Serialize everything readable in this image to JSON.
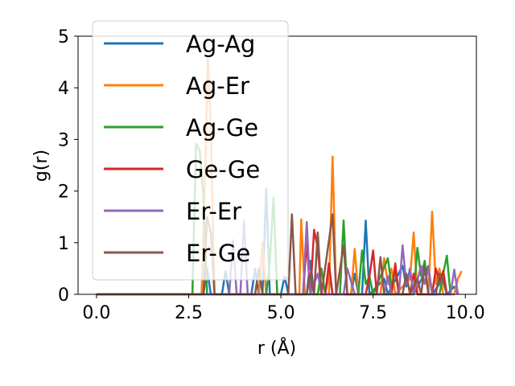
{
  "chart_data": {
    "type": "line",
    "title": "",
    "xlabel": "r (Å)",
    "ylabel": "g(r)",
    "xlim": [
      -0.5,
      10.3
    ],
    "ylim": [
      0,
      5
    ],
    "xticks": [
      0.0,
      2.5,
      5.0,
      7.5,
      10.0
    ],
    "xtick_labels": [
      "0.0",
      "2.5",
      "5.0",
      "7.5",
      "10.0"
    ],
    "yticks": [
      0,
      1,
      2,
      3,
      4,
      5
    ],
    "ytick_labels": [
      "0",
      "1",
      "2",
      "3",
      "4",
      "5"
    ],
    "grid": false,
    "legend_position": "upper-left",
    "series": [
      {
        "name": "Ag-Ag",
        "color": "#1f77b4",
        "points": [
          [
            0,
            0
          ],
          [
            2.9,
            0
          ],
          [
            3.0,
            0.5
          ],
          [
            3.1,
            0
          ],
          [
            3.4,
            0
          ],
          [
            3.5,
            0.45
          ],
          [
            3.6,
            0
          ],
          [
            4.2,
            0
          ],
          [
            4.3,
            0.5
          ],
          [
            4.4,
            0
          ],
          [
            4.5,
            0
          ],
          [
            4.6,
            2.05
          ],
          [
            4.7,
            0
          ],
          [
            5.0,
            0
          ],
          [
            5.1,
            0.35
          ],
          [
            5.2,
            0
          ],
          [
            5.7,
            0
          ],
          [
            5.8,
            0.65
          ],
          [
            5.9,
            0
          ],
          [
            6.2,
            0
          ],
          [
            6.3,
            0.45
          ],
          [
            6.4,
            0
          ],
          [
            6.9,
            0
          ],
          [
            7.0,
            0.4
          ],
          [
            7.1,
            0
          ],
          [
            7.2,
            0
          ],
          [
            7.3,
            1.43
          ],
          [
            7.4,
            0
          ],
          [
            7.8,
            0.3
          ],
          [
            7.9,
            0
          ],
          [
            8.3,
            0.55
          ],
          [
            8.4,
            0.15
          ],
          [
            8.5,
            0.5
          ],
          [
            8.6,
            0
          ],
          [
            9.0,
            0.55
          ],
          [
            9.1,
            0
          ],
          [
            9.3,
            0.2
          ],
          [
            9.4,
            0.4
          ],
          [
            9.5,
            0
          ],
          [
            9.7,
            0.15
          ],
          [
            9.8,
            0
          ]
        ]
      },
      {
        "name": "Ag-Er",
        "color": "#ff7f0e",
        "points": [
          [
            0,
            0
          ],
          [
            2.85,
            0
          ],
          [
            2.95,
            2.4
          ],
          [
            3.02,
            4.6
          ],
          [
            3.1,
            3.2
          ],
          [
            3.2,
            0
          ],
          [
            4.4,
            0
          ],
          [
            4.5,
            1.0
          ],
          [
            4.6,
            0
          ],
          [
            5.5,
            0
          ],
          [
            5.55,
            1.45
          ],
          [
            5.65,
            0
          ],
          [
            6.3,
            0
          ],
          [
            6.4,
            2.67
          ],
          [
            6.5,
            0
          ],
          [
            6.9,
            0
          ],
          [
            7.0,
            0.88
          ],
          [
            7.1,
            0
          ],
          [
            7.7,
            0
          ],
          [
            7.8,
            0.7
          ],
          [
            7.9,
            0.2
          ],
          [
            8.0,
            0.5
          ],
          [
            8.1,
            0
          ],
          [
            8.5,
            0.3
          ],
          [
            8.6,
            1.2
          ],
          [
            8.7,
            0
          ],
          [
            9.0,
            0
          ],
          [
            9.1,
            1.6
          ],
          [
            9.2,
            0.2
          ],
          [
            9.3,
            0.5
          ],
          [
            9.4,
            0
          ],
          [
            9.7,
            0
          ],
          [
            9.8,
            0.3
          ],
          [
            9.9,
            0.45
          ]
        ]
      },
      {
        "name": "Ag-Ge",
        "color": "#2ca02c",
        "points": [
          [
            0,
            0
          ],
          [
            2.6,
            0
          ],
          [
            2.7,
            2.92
          ],
          [
            2.8,
            2.78
          ],
          [
            2.9,
            1.9
          ],
          [
            3.0,
            0
          ],
          [
            4.6,
            0
          ],
          [
            4.7,
            0.6
          ],
          [
            4.8,
            1.88
          ],
          [
            4.9,
            0
          ],
          [
            6.0,
            0
          ],
          [
            6.1,
            0.5
          ],
          [
            6.2,
            0
          ],
          [
            6.6,
            0
          ],
          [
            6.7,
            1.43
          ],
          [
            6.8,
            0
          ],
          [
            7.1,
            0
          ],
          [
            7.2,
            0.85
          ],
          [
            7.3,
            0.2
          ],
          [
            7.4,
            0.35
          ],
          [
            7.5,
            0
          ],
          [
            7.9,
            0.7
          ],
          [
            8.0,
            0.15
          ],
          [
            8.1,
            0.45
          ],
          [
            8.2,
            0
          ],
          [
            8.6,
            0
          ],
          [
            8.7,
            0.9
          ],
          [
            8.8,
            0.35
          ],
          [
            8.9,
            0.65
          ],
          [
            9.0,
            0
          ],
          [
            9.3,
            0
          ],
          [
            9.4,
            0.4
          ],
          [
            9.5,
            0.75
          ],
          [
            9.6,
            0
          ]
        ]
      },
      {
        "name": "Ge-Ge",
        "color": "#d62728",
        "points": [
          [
            0,
            0
          ],
          [
            5.6,
            0
          ],
          [
            5.7,
            1.02
          ],
          [
            5.8,
            0
          ],
          [
            5.9,
            1.25
          ],
          [
            6.0,
            0.9
          ],
          [
            6.1,
            0
          ],
          [
            6.2,
            0
          ],
          [
            6.3,
            0.6
          ],
          [
            6.4,
            0
          ],
          [
            7.3,
            0
          ],
          [
            7.4,
            0.35
          ],
          [
            7.5,
            0.85
          ],
          [
            7.6,
            0
          ],
          [
            8.0,
            0
          ],
          [
            8.1,
            0.6
          ],
          [
            8.2,
            0
          ],
          [
            8.5,
            0
          ],
          [
            8.6,
            0.4
          ],
          [
            8.7,
            0
          ],
          [
            9.1,
            0
          ],
          [
            9.2,
            0.5
          ],
          [
            9.3,
            0.25
          ],
          [
            9.4,
            0.45
          ],
          [
            9.5,
            0
          ]
        ]
      },
      {
        "name": "Er-Er",
        "color": "#9467bd",
        "points": [
          [
            0,
            0
          ],
          [
            3.6,
            0
          ],
          [
            3.7,
            1.05
          ],
          [
            3.8,
            0
          ],
          [
            3.9,
            0
          ],
          [
            4.0,
            1.43
          ],
          [
            4.1,
            0
          ],
          [
            5.6,
            0
          ],
          [
            5.7,
            1.4
          ],
          [
            5.8,
            0
          ],
          [
            6.0,
            0.4
          ],
          [
            6.1,
            0
          ],
          [
            6.7,
            0
          ],
          [
            6.8,
            0.5
          ],
          [
            6.9,
            0.25
          ],
          [
            7.0,
            0
          ],
          [
            7.8,
            0
          ],
          [
            7.9,
            0.35
          ],
          [
            8.0,
            0
          ],
          [
            8.2,
            0
          ],
          [
            8.3,
            0.95
          ],
          [
            8.4,
            0.2
          ],
          [
            8.5,
            0.45
          ],
          [
            8.6,
            0
          ],
          [
            8.8,
            0.55
          ],
          [
            8.9,
            0.2
          ],
          [
            9.0,
            0.5
          ],
          [
            9.1,
            0
          ],
          [
            9.6,
            0
          ],
          [
            9.7,
            0.48
          ],
          [
            9.8,
            0
          ]
        ]
      },
      {
        "name": "Er-Ge",
        "color": "#8c564b",
        "points": [
          [
            0,
            0
          ],
          [
            2.9,
            0
          ],
          [
            3.0,
            1.5
          ],
          [
            3.1,
            1.2
          ],
          [
            3.2,
            0
          ],
          [
            4.3,
            0
          ],
          [
            4.4,
            0.5
          ],
          [
            4.5,
            0
          ],
          [
            5.2,
            0
          ],
          [
            5.3,
            1.55
          ],
          [
            5.4,
            0
          ],
          [
            5.7,
            0
          ],
          [
            5.8,
            0.4
          ],
          [
            5.9,
            0
          ],
          [
            6.0,
            1.2
          ],
          [
            6.1,
            0
          ],
          [
            6.4,
            1.55
          ],
          [
            6.5,
            0
          ],
          [
            6.7,
            0.95
          ],
          [
            6.8,
            0
          ],
          [
            7.6,
            0
          ],
          [
            7.7,
            0.72
          ],
          [
            7.8,
            0
          ],
          [
            8.3,
            0
          ],
          [
            8.4,
            0.4
          ],
          [
            8.5,
            0
          ],
          [
            8.7,
            0.3
          ],
          [
            8.8,
            0
          ],
          [
            8.9,
            0.55
          ],
          [
            9.0,
            0
          ],
          [
            9.2,
            0
          ],
          [
            9.3,
            0.4
          ],
          [
            9.4,
            0.25
          ],
          [
            9.5,
            0
          ]
        ]
      }
    ]
  }
}
